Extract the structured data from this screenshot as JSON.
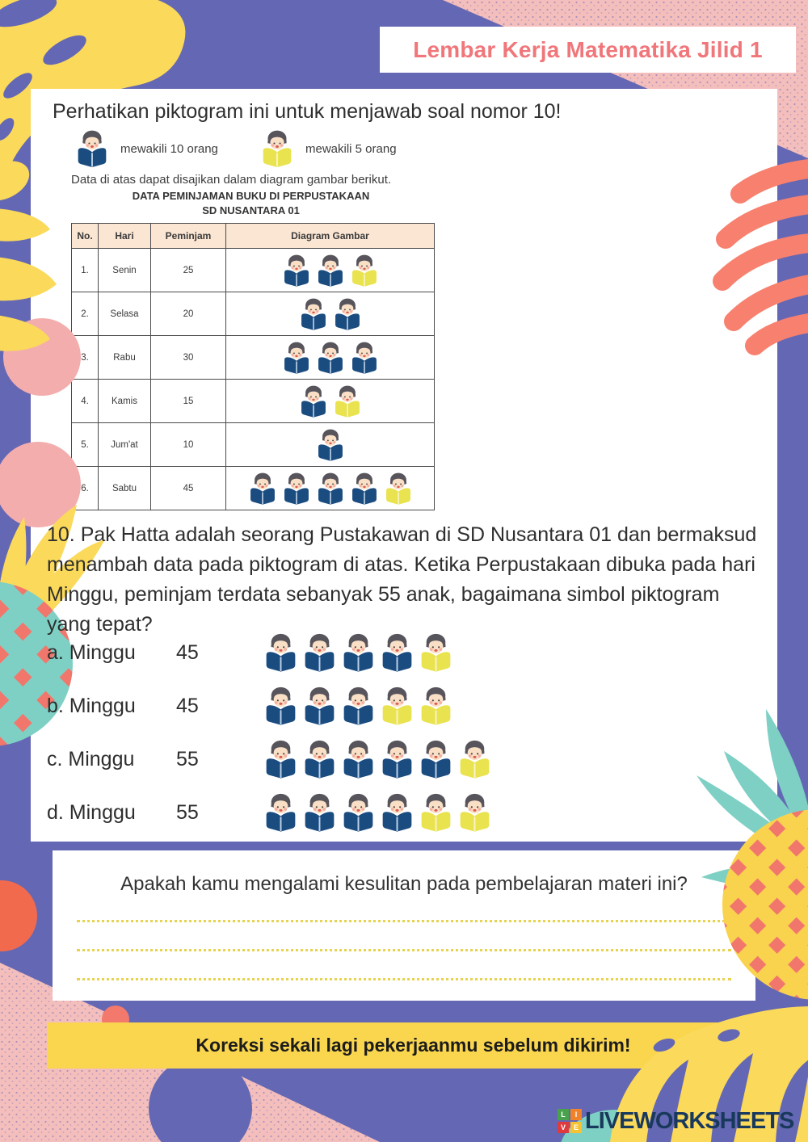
{
  "colors": {
    "background": "#6467B3",
    "accent_yellow": "#FBD95A",
    "accent_coral": "#F8806F",
    "accent_pink": "#F4BEBC",
    "accent_teal": "#7ED0C4",
    "title_coral": "#F0767A",
    "table_header_bg": "#FBE6D3",
    "book_blue": "#1B4C80",
    "book_yellow": "#E9E34F",
    "reminder_bar_bg": "#FAD64E",
    "logo_navy": "#19395C"
  },
  "header": {
    "title": "Lembar Kerja Matematika Jilid 1"
  },
  "card": {
    "instruction": "Perhatikan piktogram ini untuk menjawab soal nomor 10!",
    "legend": [
      {
        "icon": "blue-reader-icon",
        "blue": 1,
        "yellow": 0,
        "label": "mewakili 10 orang"
      },
      {
        "icon": "yellow-reader-icon",
        "blue": 0,
        "yellow": 1,
        "label": "mewakili 5 orang"
      }
    ],
    "note": "Data di atas dapat disajikan dalam diagram gambar berikut.",
    "table": {
      "title_line1": "DATA PEMINJAMAN BUKU DI PERPUSTAKAAN",
      "title_line2": "SD NUSANTARA 01",
      "headers": [
        "No.",
        "Hari",
        "Peminjam",
        "Diagram Gambar"
      ],
      "rows": [
        {
          "no": "1.",
          "hari": "Senin",
          "peminjam": "25",
          "blue": 2,
          "yellow": 1
        },
        {
          "no": "2.",
          "hari": "Selasa",
          "peminjam": "20",
          "blue": 2,
          "yellow": 0
        },
        {
          "no": "3.",
          "hari": "Rabu",
          "peminjam": "30",
          "blue": 3,
          "yellow": 0
        },
        {
          "no": "4.",
          "hari": "Kamis",
          "peminjam": "15",
          "blue": 1,
          "yellow": 1
        },
        {
          "no": "5.",
          "hari": "Jum'at",
          "peminjam": "10",
          "blue": 1,
          "yellow": 0
        },
        {
          "no": "6.",
          "hari": "Sabtu",
          "peminjam": "45",
          "blue": 4,
          "yellow": 1
        }
      ]
    },
    "question": "10. Pak Hatta adalah seorang Pustakawan di SD Nusantara 01 dan bermaksud menambah data pada piktogram di atas. Ketika Perpustakaan dibuka pada hari Minggu, peminjam terdata sebanyak 55 anak, bagaimana simbol piktogram yang tepat?",
    "options": [
      {
        "key": "a",
        "label": "a. Minggu",
        "value": "45",
        "blue": 4,
        "yellow": 1
      },
      {
        "key": "b",
        "label": "b. Minggu",
        "value": "45",
        "blue": 3,
        "yellow": 2
      },
      {
        "key": "c",
        "label": "c. Minggu",
        "value": "55",
        "blue": 5,
        "yellow": 1
      },
      {
        "key": "d",
        "label": "d. Minggu",
        "value": "55",
        "blue": 4,
        "yellow": 2
      }
    ]
  },
  "feedback": {
    "question": "Apakah kamu mengalami kesulitan pada pembelajaran materi ini?",
    "answer_lines": 3
  },
  "footer": {
    "reminder": "Koreksi sekali lagi pekerjaanmu sebelum dikirim!",
    "brand": "LIVEWORKSHEETS",
    "logo_letters": [
      "L",
      "I",
      "V",
      "E"
    ]
  }
}
